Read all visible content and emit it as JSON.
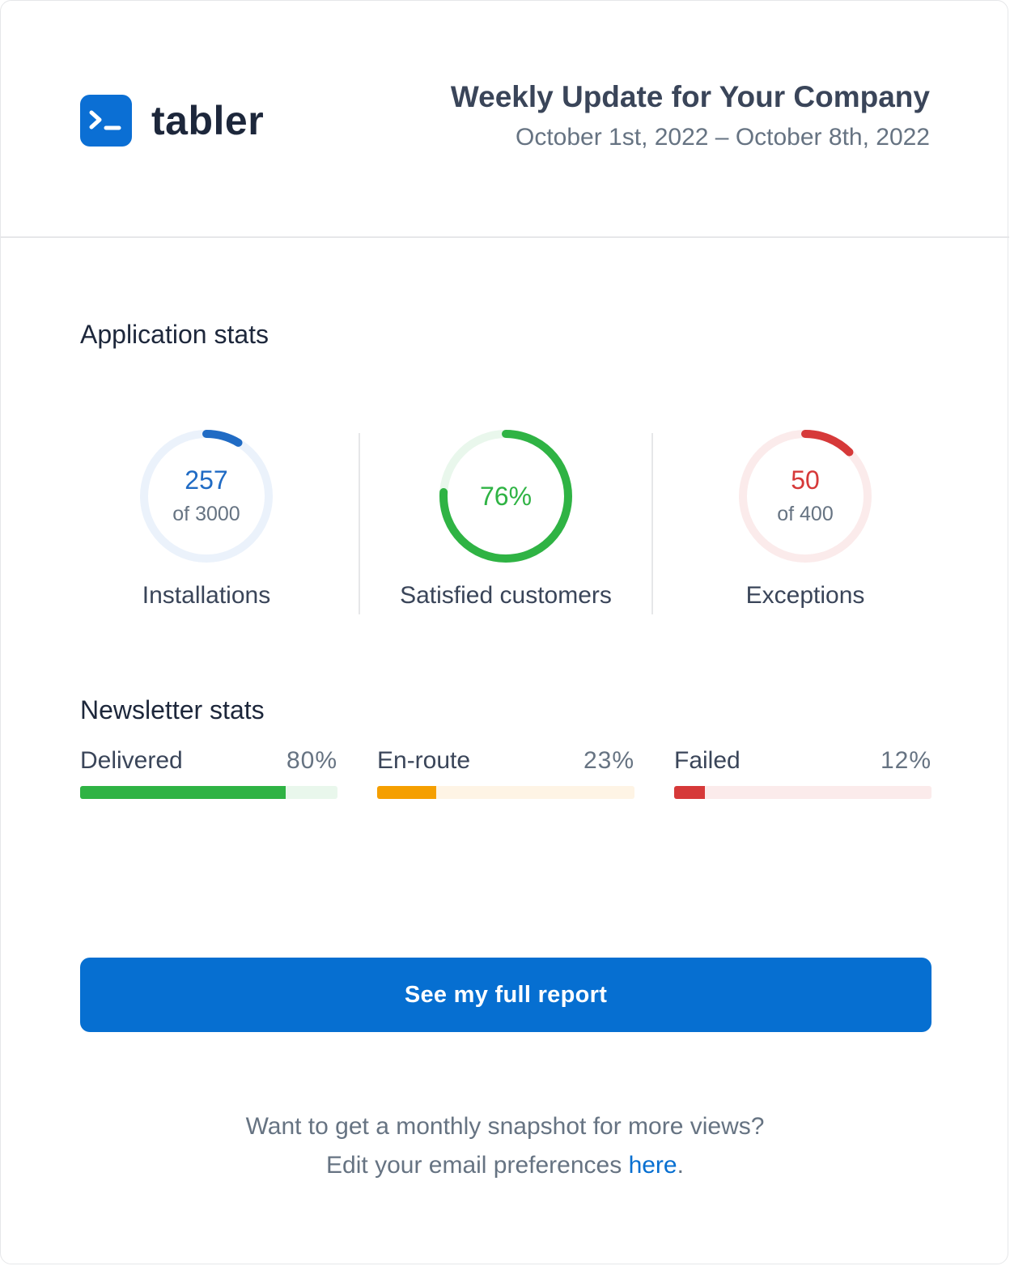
{
  "header": {
    "brand": "tabler",
    "title": "Weekly Update for Your Company",
    "date_range": "October 1st, 2022 – October 8th, 2022"
  },
  "app_stats": {
    "title": "Application stats",
    "items": [
      {
        "value": "257",
        "sub": "of 3000",
        "label": "Installations",
        "fraction": 0.0857,
        "color": "#206bc4",
        "track": "#ebf2fb"
      },
      {
        "value": "76%",
        "sub": "",
        "label": "Satisfied customers",
        "fraction": 0.76,
        "color": "#2fb344",
        "track": "#e9f7ec"
      },
      {
        "value": "50",
        "sub": "of 400",
        "label": "Exceptions",
        "fraction": 0.125,
        "color": "#d63939",
        "track": "#fbebeb"
      }
    ]
  },
  "newsletter": {
    "title": "Newsletter stats",
    "items": [
      {
        "label": "Delivered",
        "pct": "80%",
        "fraction": 0.8,
        "color": "#2fb344",
        "track": "#e9f7ec"
      },
      {
        "label": "En-route",
        "pct": "23%",
        "fraction": 0.23,
        "color": "#f59f00",
        "track": "#fef4e5"
      },
      {
        "label": "Failed",
        "pct": "12%",
        "fraction": 0.12,
        "color": "#d63939",
        "track": "#fbebeb"
      }
    ]
  },
  "cta": {
    "label": "See my full report"
  },
  "footer": {
    "line1": "Want to get a monthly snapshot for more views?",
    "line2_prefix": "Edit your email preferences ",
    "link": "here",
    "line2_suffix": "."
  }
}
